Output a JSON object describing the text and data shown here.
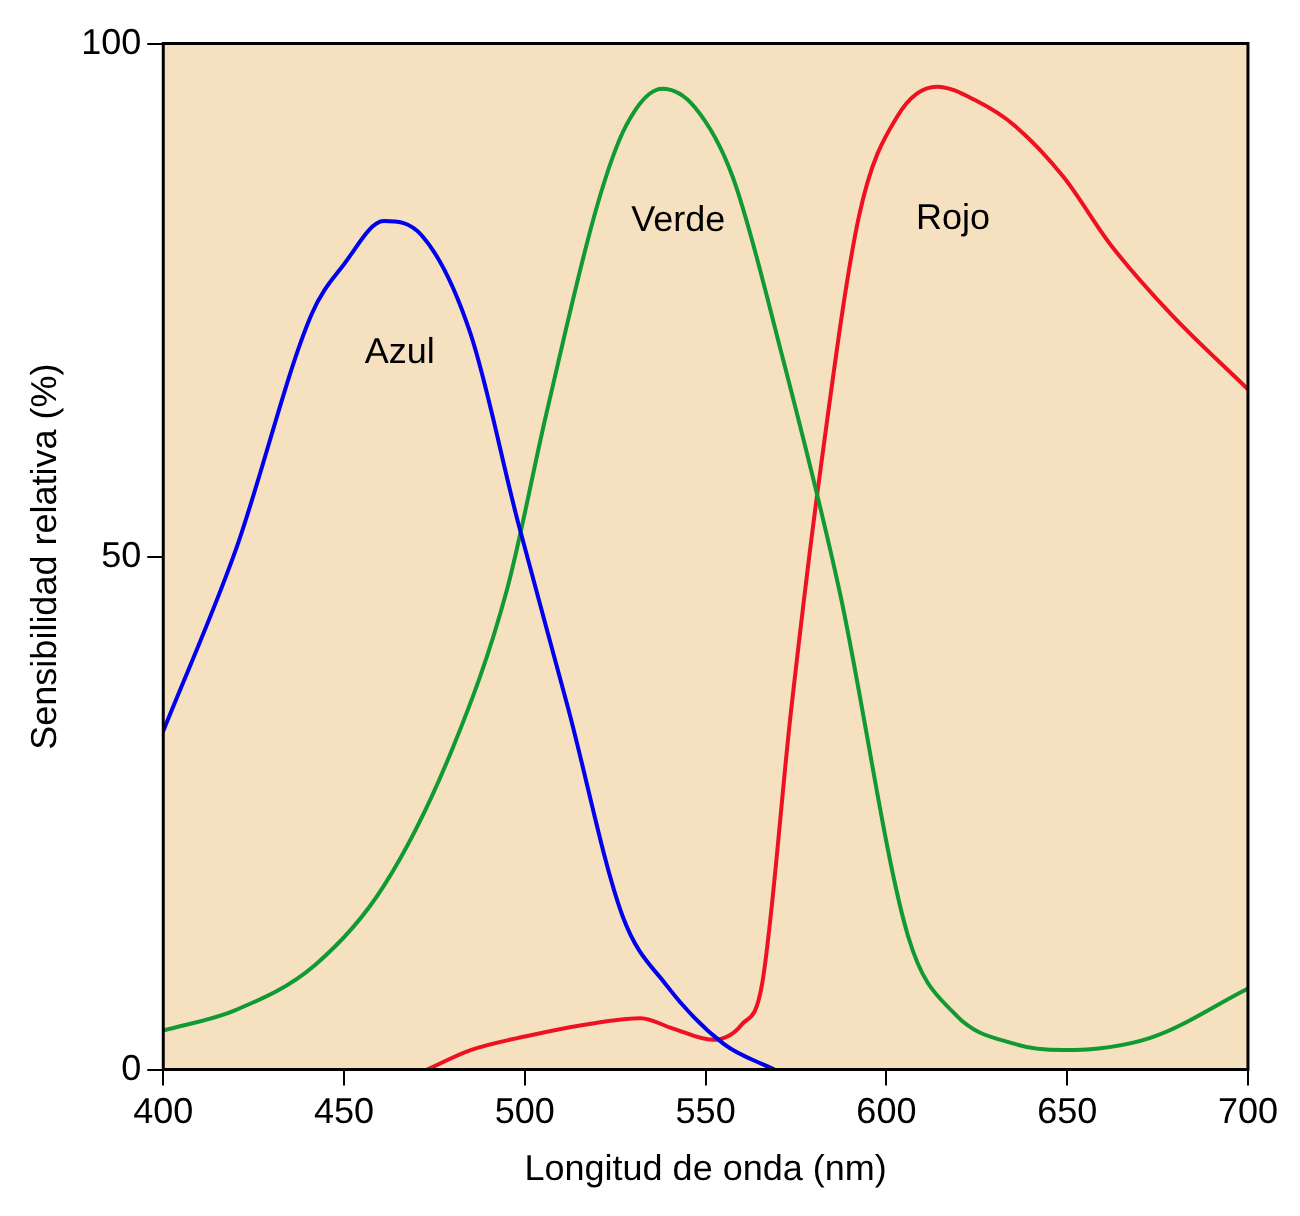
{
  "chart_data": {
    "type": "line",
    "xlabel": "Longitud de onda (nm)",
    "ylabel": "Sensibilidad relativa (%)",
    "xlim": [
      400,
      700
    ],
    "xticks": [
      400,
      450,
      500,
      550,
      600,
      650,
      700
    ],
    "ylim": [
      0,
      100
    ],
    "yticks": [
      0,
      50,
      100
    ],
    "grid": false,
    "legend": false,
    "marker": "none",
    "line_style": "solid",
    "series": [
      {
        "name": "Azul",
        "color": "#0000ee",
        "x": [
          400,
          420,
          441,
          450,
          461,
          471.5,
          485,
          498,
          512,
          527,
          539,
          555,
          569
        ],
        "values": [
          33,
          50.6,
          73.6,
          78.5,
          82.7,
          81.3,
          71.7,
          53.5,
          35.2,
          15,
          8.3,
          2.5,
          0
        ]
      },
      {
        "name": "Verde",
        "color": "#119933",
        "x": [
          400,
          420,
          442,
          461,
          480,
          495,
          506,
          520,
          528,
          538,
          547,
          557.5,
          571,
          587,
          606,
          619,
          635.5,
          649,
          673,
          700
        ],
        "values": [
          3.8,
          5.8,
          10.2,
          17.9,
          31.3,
          46.7,
          64,
          84.2,
          92,
          95.6,
          93.8,
          87,
          69.8,
          46.7,
          13,
          5.4,
          2.5,
          1.9,
          3.1,
          7.9
        ]
      },
      {
        "name": "Rojo",
        "color": "#ee1122",
        "x": [
          473,
          485,
          501,
          517,
          532,
          541,
          552,
          560,
          565.6,
          573.7,
          581.7,
          592.5,
          603,
          614,
          625,
          635.5,
          649,
          662,
          678.5,
          700
        ],
        "values": [
          0,
          1.9,
          3.3,
          4.4,
          5,
          4,
          2.9,
          4.4,
          8.3,
          35.2,
          58.3,
          83.3,
          92.9,
          95.8,
          94.4,
          92,
          87,
          80.4,
          73.7,
          66.3
        ]
      }
    ]
  }
}
